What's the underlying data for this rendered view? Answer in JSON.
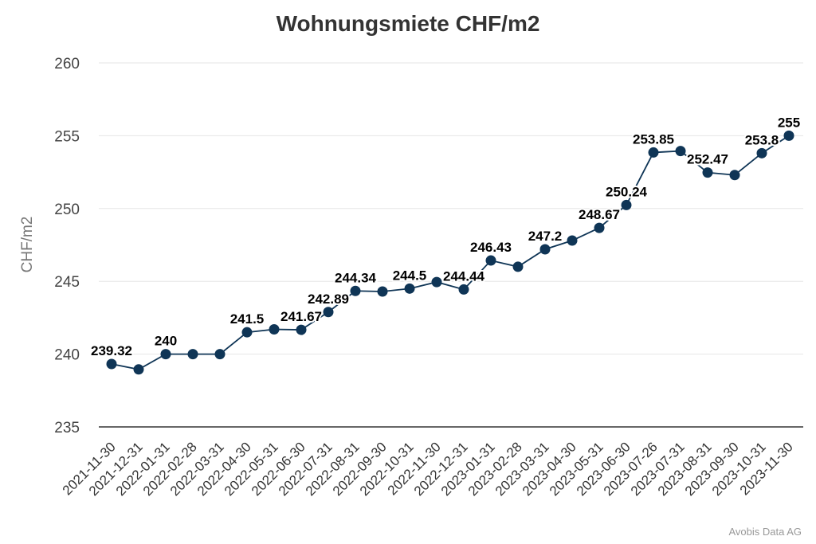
{
  "chart_data": {
    "type": "line",
    "title": "Wohnungsmiete CHF/m2",
    "ylabel": "CHF/m2",
    "xlabel": "",
    "ylim": [
      235,
      260
    ],
    "yticks": [
      235,
      240,
      245,
      250,
      255,
      260
    ],
    "grid": true,
    "legend": "none",
    "x": [
      "2021-11-30",
      "2021-12-31",
      "2022-01-31",
      "2022-02-28",
      "2022-03-31",
      "2022-04-30",
      "2022-05-31",
      "2022-06-30",
      "2022-07-31",
      "2022-08-31",
      "2022-09-30",
      "2022-10-31",
      "2022-11-30",
      "2022-12-31",
      "2023-01-31",
      "2023-02-28",
      "2023-03-31",
      "2023-04-30",
      "2023-05-31",
      "2023-06-30",
      "2023-07-26",
      "2023-07-31",
      "2023-08-31",
      "2023-09-30",
      "2023-10-31",
      "2023-11-30"
    ],
    "series": [
      {
        "values": [
          239.32,
          238.95,
          240.0,
          240.0,
          240.0,
          241.5,
          241.7,
          241.67,
          242.89,
          244.34,
          244.3,
          244.5,
          244.95,
          244.44,
          246.43,
          246.0,
          247.2,
          247.8,
          248.67,
          250.24,
          253.85,
          253.95,
          252.47,
          252.3,
          253.8,
          255.0
        ],
        "labels": [
          "239.32",
          "",
          "240",
          "",
          "",
          "241.5",
          "",
          "241.67",
          "242.89",
          "244.34",
          "",
          "244.5",
          "",
          "244.44",
          "246.43",
          "",
          "247.2",
          "",
          "248.67",
          "250.24",
          "253.85",
          "",
          "252.47",
          "",
          "253.8",
          "255"
        ]
      }
    ],
    "colors": {
      "line": "#0f3556",
      "marker": "#0f3556",
      "grid": "#e6e6e6",
      "axis": "#333333"
    }
  },
  "footer": {
    "credit": "Avobis Data AG"
  }
}
